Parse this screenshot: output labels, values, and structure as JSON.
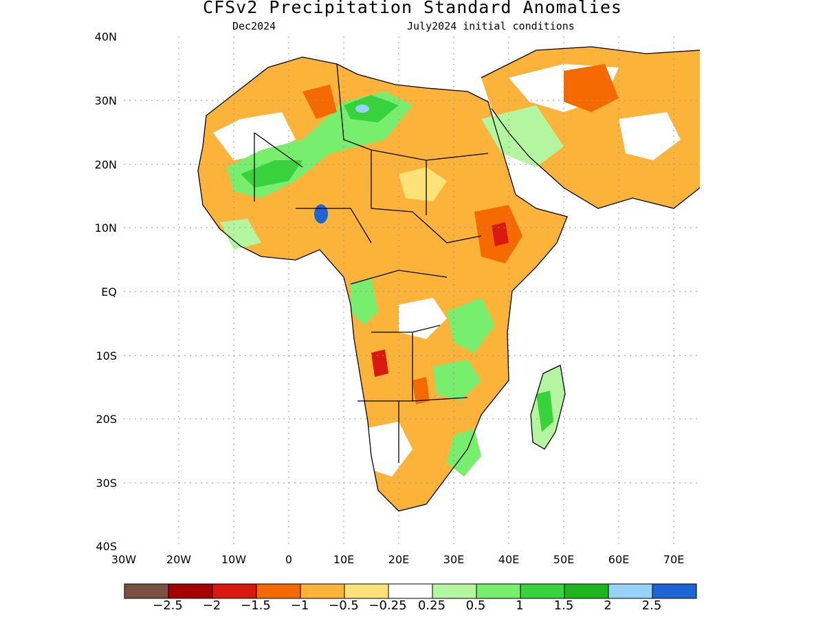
{
  "title": "CFSv2 Precipitation Standard Anomalies",
  "subtitle_left": "Dec2024",
  "subtitle_right": "July2024 initial conditions",
  "map": {
    "region": "Africa",
    "lat_ticks": [
      "40N",
      "30N",
      "20N",
      "10N",
      "EQ",
      "10S",
      "20S",
      "30S",
      "40S"
    ],
    "lon_ticks": [
      "30W",
      "20W",
      "10W",
      "0",
      "10E",
      "20E",
      "30E",
      "40E",
      "50E",
      "60E",
      "70E"
    ],
    "lat_range": [
      -40,
      40
    ],
    "lon_range": [
      -30,
      75
    ],
    "grid": "dotted"
  },
  "colorbar": {
    "labels": [
      "−2.5",
      "−2",
      "−1.5",
      "−1",
      "−0.5",
      "−0.25",
      "0.25",
      "0.5",
      "1",
      "1.5",
      "2",
      "2.5"
    ],
    "colors": [
      "#7a5045",
      "#a50000",
      "#d9190f",
      "#f56a00",
      "#fbb439",
      "#fde27a",
      "#ffffff",
      "#b4f5a0",
      "#78ee6e",
      "#37d23c",
      "#1eb41e",
      "#96d2fa",
      "#1e64d2"
    ]
  }
}
